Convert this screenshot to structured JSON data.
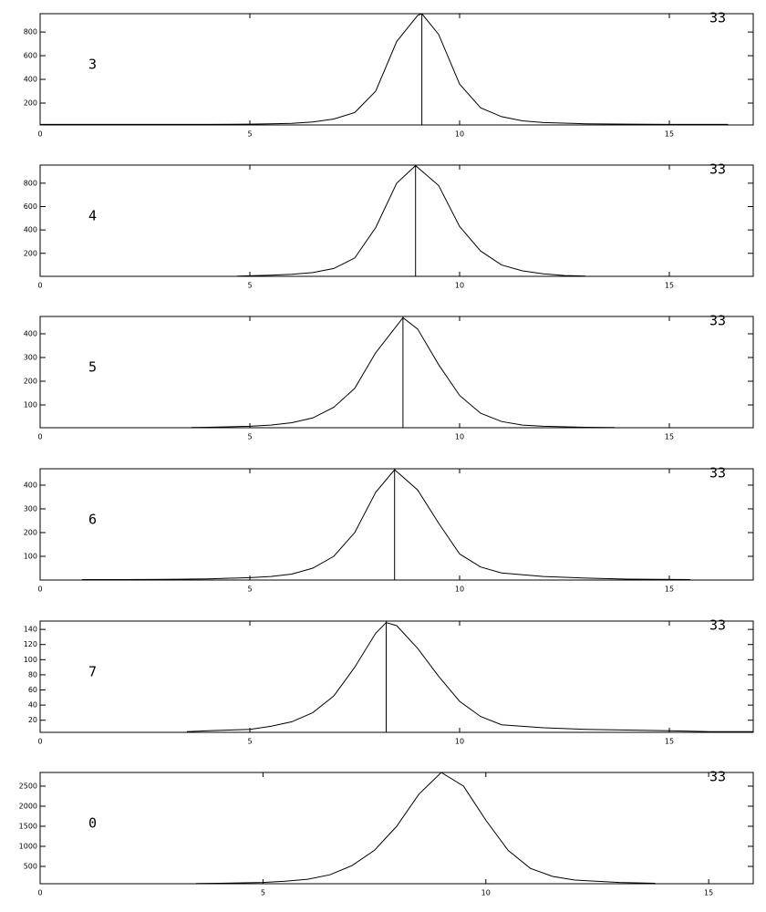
{
  "chart_data": [
    {
      "type": "line",
      "label": "3",
      "corner_label": "33",
      "color": "#000000",
      "x": [
        0,
        1,
        2,
        3,
        4,
        5,
        5.5,
        6,
        6.5,
        7,
        7.5,
        8,
        8.5,
        9,
        9.1,
        9.5,
        10,
        10.5,
        11,
        11.5,
        12,
        13,
        14,
        15,
        16.4
      ],
      "values": [
        20,
        20,
        20,
        20,
        20,
        22,
        24,
        28,
        40,
        65,
        120,
        300,
        720,
        940,
        955,
        780,
        360,
        160,
        85,
        50,
        35,
        25,
        22,
        20,
        20
      ],
      "xlim": [
        0,
        17
      ],
      "ylim": [
        15,
        955
      ],
      "xticks": [
        0,
        5,
        10,
        15
      ],
      "yticks": [
        200,
        400,
        600,
        800
      ],
      "vline": 9.1
    },
    {
      "type": "line",
      "label": "4",
      "corner_label": "33",
      "color": "#000000",
      "x": [
        4.7,
        5,
        5.5,
        6,
        6.5,
        7,
        7.5,
        8,
        8.5,
        8.95,
        9.5,
        10,
        10.5,
        11,
        11.5,
        12,
        12.5,
        13
      ],
      "values": [
        5,
        8,
        12,
        20,
        35,
        70,
        160,
        420,
        800,
        950,
        780,
        430,
        220,
        100,
        50,
        25,
        10,
        5
      ],
      "xlim": [
        0,
        17
      ],
      "ylim": [
        3,
        955
      ],
      "xticks": [
        0,
        5,
        10,
        15
      ],
      "yticks": [
        200,
        400,
        600,
        800
      ],
      "vline": 8.95
    },
    {
      "type": "line",
      "label": "5",
      "corner_label": "33",
      "color": "#000000",
      "x": [
        3.6,
        4,
        5,
        5.5,
        6,
        6.5,
        7,
        7.5,
        8,
        8.65,
        9,
        9.5,
        10,
        10.5,
        11,
        11.5,
        12,
        13,
        13.7
      ],
      "values": [
        5,
        6,
        10,
        15,
        25,
        45,
        90,
        170,
        320,
        468,
        420,
        270,
        140,
        65,
        30,
        15,
        10,
        6,
        5
      ],
      "xlim": [
        0,
        17
      ],
      "ylim": [
        4,
        473
      ],
      "xticks": [
        0,
        5,
        10,
        15
      ],
      "yticks": [
        100,
        200,
        300,
        400
      ],
      "vline": 8.65
    },
    {
      "type": "line",
      "label": "6",
      "corner_label": "33",
      "color": "#000000",
      "x": [
        1,
        2,
        3,
        4,
        5,
        5.5,
        6,
        6.5,
        7,
        7.5,
        8,
        8.45,
        9,
        9.5,
        10,
        10.5,
        11,
        12,
        13,
        14,
        15.5
      ],
      "values": [
        2,
        2,
        3,
        5,
        10,
        15,
        25,
        50,
        100,
        200,
        370,
        465,
        380,
        240,
        110,
        55,
        30,
        15,
        8,
        4,
        2
      ],
      "xlim": [
        0,
        17
      ],
      "ylim": [
        0,
        469
      ],
      "xticks": [
        0,
        5,
        10,
        15
      ],
      "yticks": [
        100,
        200,
        300,
        400
      ],
      "vline": 8.45
    },
    {
      "type": "line",
      "label": "7",
      "corner_label": "33",
      "color": "#000000",
      "x": [
        3.5,
        4,
        5,
        5.5,
        6,
        6.5,
        7,
        7.5,
        8,
        8.25,
        8.5,
        9,
        9.5,
        10,
        10.5,
        11,
        12,
        13,
        14,
        15,
        16,
        17
      ],
      "values": [
        5,
        6,
        8,
        12,
        18,
        30,
        52,
        90,
        135,
        149,
        145,
        115,
        78,
        45,
        25,
        14,
        10,
        8,
        7,
        6,
        5,
        5
      ],
      "xlim": [
        0,
        17
      ],
      "ylim": [
        4,
        151
      ],
      "xticks": [
        0,
        5,
        10,
        15
      ],
      "yticks": [
        20,
        40,
        60,
        80,
        100,
        120,
        140
      ],
      "vline": 8.25
    },
    {
      "type": "line",
      "label": "0",
      "corner_label": "33",
      "color": "#000000",
      "x": [
        3.5,
        4,
        5,
        5.5,
        6,
        6.5,
        7,
        7.5,
        8,
        8.5,
        9,
        9.5,
        10,
        10.5,
        11,
        11.5,
        12,
        13,
        13.8
      ],
      "values": [
        75,
        80,
        100,
        130,
        180,
        290,
        520,
        900,
        1500,
        2300,
        2840,
        2500,
        1650,
        900,
        450,
        250,
        160,
        100,
        80
      ],
      "xlim": [
        0,
        16
      ],
      "ylim": [
        68,
        2840
      ],
      "xticks": [
        0,
        5,
        10,
        15
      ],
      "yticks": [
        500,
        1000,
        1500,
        2000,
        2500
      ]
    }
  ]
}
